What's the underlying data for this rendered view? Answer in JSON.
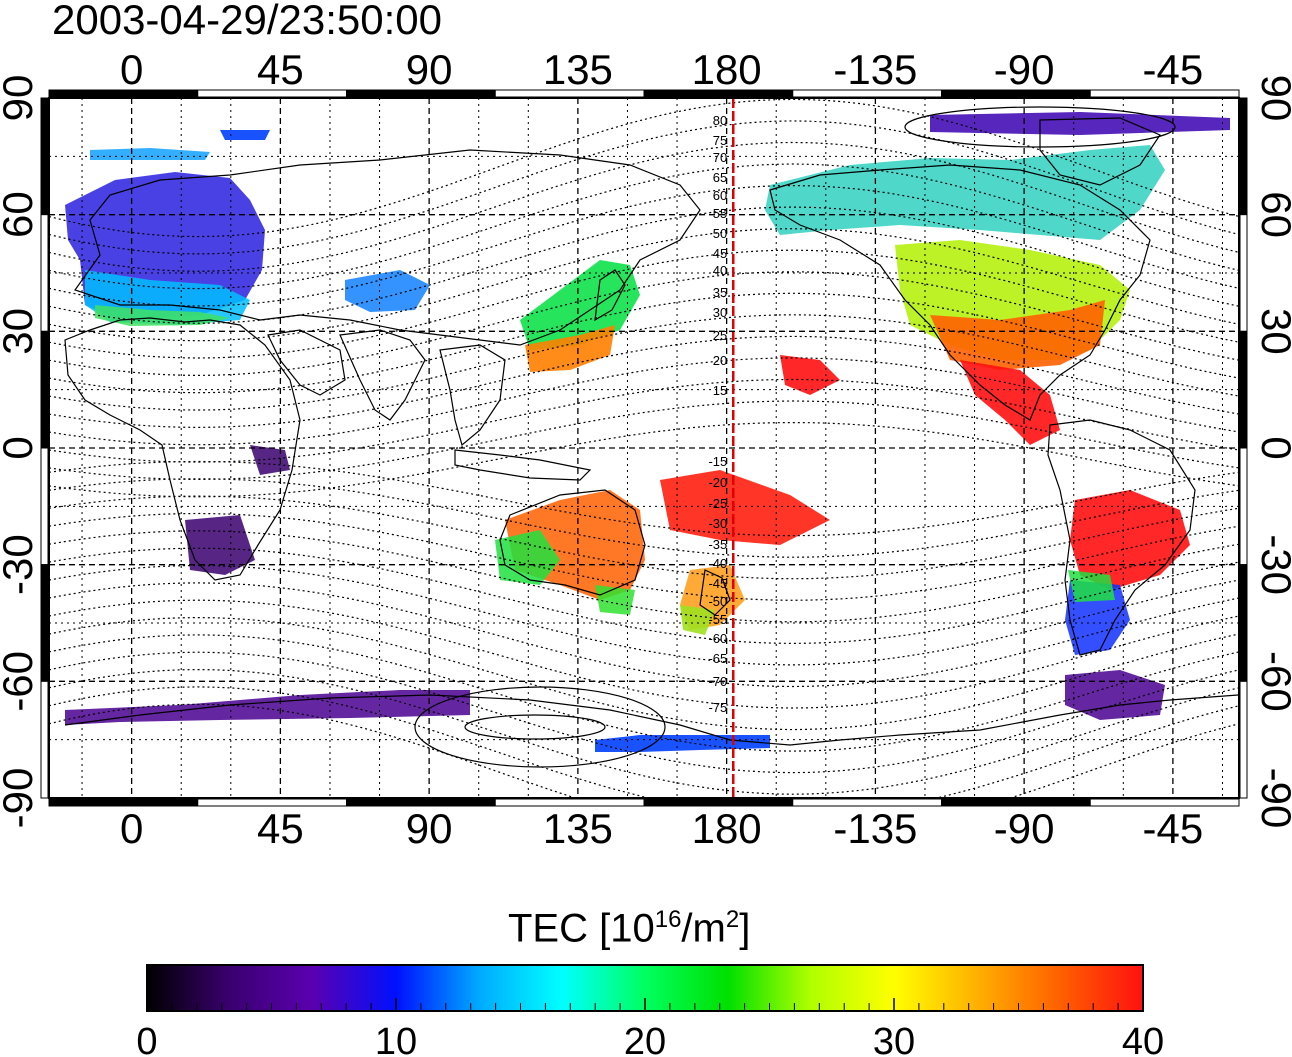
{
  "timestamp": "2003-04-29/23:50:00",
  "colorbar": {
    "label_main": "TEC  [10",
    "label_exp": "16",
    "label_mid": "/m",
    "label_exp2": "2",
    "label_end": "]",
    "ticks": [
      "0",
      "10",
      "20",
      "30",
      "40"
    ],
    "colors": [
      "#000000",
      "#3a0070",
      "#5a00b0",
      "#0010ff",
      "#00aaff",
      "#00ffff",
      "#00ff60",
      "#00e000",
      "#b0ff00",
      "#ffff00",
      "#ffb000",
      "#ff6000",
      "#ff1010"
    ]
  },
  "axes": {
    "lon_ticks": [
      "0",
      "45",
      "90",
      "135",
      "180",
      "-135",
      "-90",
      "-45"
    ],
    "lat_ticks": [
      "90",
      "60",
      "30",
      "0",
      "-30",
      "-60",
      "-90"
    ]
  },
  "contour_labels": {
    "north": [
      "80",
      "75",
      "70",
      "65",
      "60",
      "55",
      "50",
      "45",
      "40",
      "35",
      "30",
      "25",
      "20",
      "15"
    ],
    "south": [
      "-15",
      "-20",
      "-25",
      "-30",
      "-35",
      "-40",
      "-45",
      "-50",
      "-55",
      "-60",
      "-65",
      "-70",
      "-75"
    ]
  },
  "map": {
    "lon_range": [
      -25,
      335
    ],
    "lat_range": [
      -90,
      90
    ],
    "terminator_lon": 182
  }
}
